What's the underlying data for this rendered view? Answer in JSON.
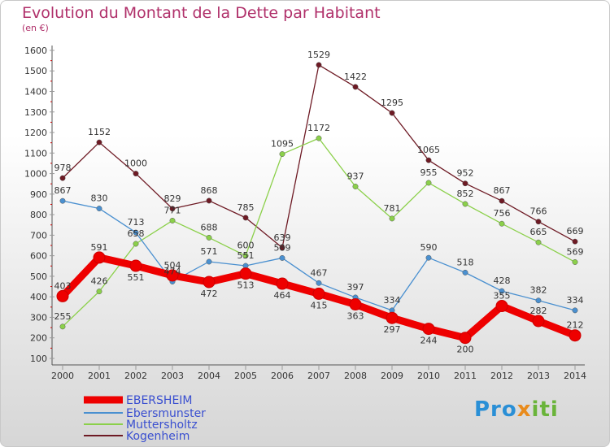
{
  "title": "Evolution du Montant de la Dette par Habitant",
  "subtitle": "(en €)",
  "logo": {
    "part1": "Pro",
    "part2": "x",
    "part3": "iti"
  },
  "colors": {
    "title": "#b0306a",
    "EBERSHEIM": "#ee0000",
    "Ebersmunster": "#4a90d0",
    "Muttersholtz": "#8bd04a",
    "Kogenheim": "#6e1a24"
  },
  "chart_data": {
    "type": "line",
    "title": "Evolution du Montant de la Dette par Habitant",
    "subtitle": "(en €)",
    "xlabel": "",
    "ylabel": "",
    "ylim": [
      100,
      1600
    ],
    "yticks": [
      100,
      200,
      300,
      400,
      500,
      600,
      700,
      800,
      900,
      1000,
      1100,
      1200,
      1300,
      1400,
      1500,
      1600
    ],
    "grid": false,
    "legend_position": "bottom-left",
    "categories": [
      "2000",
      "2001",
      "2002",
      "2003",
      "2004",
      "2005",
      "2006",
      "2007",
      "2008",
      "2009",
      "2010",
      "2011",
      "2012",
      "2013",
      "2014"
    ],
    "series": [
      {
        "name": "EBERSHEIM",
        "values": [
          403,
          591,
          551,
          504,
          472,
          513,
          464,
          415,
          363,
          297,
          244,
          200,
          355,
          282,
          212
        ]
      },
      {
        "name": "Ebersmunster",
        "values": [
          867,
          830,
          713,
          474,
          571,
          551,
          589,
          467,
          397,
          334,
          590,
          518,
          428,
          382,
          334
        ]
      },
      {
        "name": "Muttersholtz",
        "values": [
          255,
          426,
          658,
          771,
          688,
          600,
          1095,
          1172,
          937,
          781,
          955,
          852,
          756,
          665,
          569
        ]
      },
      {
        "name": "Kogenheim",
        "values": [
          978,
          1152,
          1000,
          829,
          868,
          785,
          639,
          1529,
          1422,
          1295,
          1065,
          952,
          867,
          766,
          669
        ]
      }
    ]
  }
}
